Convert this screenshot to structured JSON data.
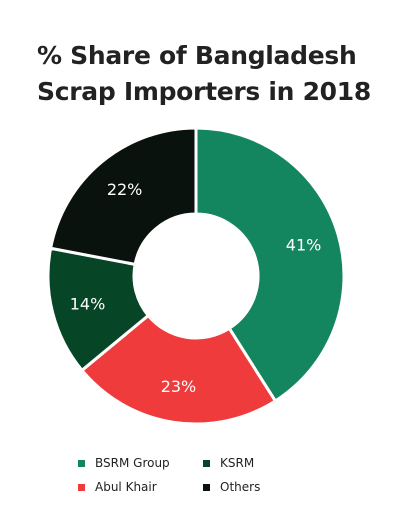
{
  "chart_data": {
    "type": "pie",
    "variant": "donut",
    "title_lines": [
      "% Share of Bangladesh",
      "Scrap Importers in 2018"
    ],
    "categories": [
      "BSRM Group",
      "Abul Khair",
      "KSRM",
      "Others"
    ],
    "values": [
      41,
      23,
      14,
      22
    ],
    "value_labels": [
      "41%",
      "23%",
      "14%",
      "22%"
    ],
    "colors": [
      "#14865f",
      "#ef3b3c",
      "#064526",
      "#0a120d"
    ],
    "legend": {
      "placement": "bottom",
      "items": [
        {
          "label": "BSRM Group",
          "color": "#14865f"
        },
        {
          "label": "KSRM",
          "color": "#064526"
        },
        {
          "label": "Abul Khair",
          "color": "#ef3b3c"
        },
        {
          "label": "Others",
          "color": "#0a120d"
        }
      ]
    }
  }
}
